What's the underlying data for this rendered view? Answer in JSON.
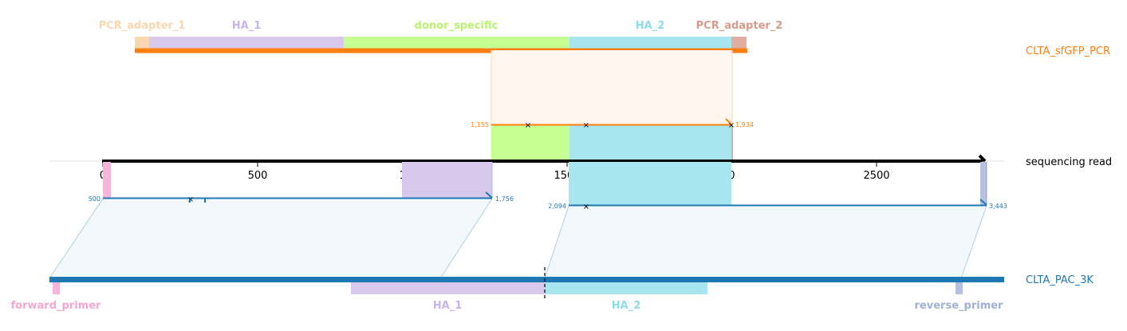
{
  "colors": {
    "pcr_line": "#ff7f0e",
    "pac_line": "#1f77b4",
    "read_axis": "#000000",
    "pcr_adapter_1": "#fbd7b1",
    "ha_1": "#d7c8ec",
    "donor_specific": "#c5ff91",
    "ha_2": "#a8e6ef",
    "pcr_adapter_2": "#e0aea1",
    "forward_primer": "#f7b5dc",
    "reverse_primer": "#b4c1e0",
    "pcr_fill": "#fff6ef",
    "pac_fill": "#f2f8fb"
  },
  "references": {
    "top": {
      "name": "CLTA_sfGFP_PCR",
      "features": [
        {
          "name": "PCR_adapter_1",
          "label_color": "#fbd7b1"
        },
        {
          "name": "HA_1",
          "label_color": "#c6b5e6"
        },
        {
          "name": "donor_specific",
          "label_color": "#b8f56b"
        },
        {
          "name": "HA_2",
          "label_color": "#8ddcea"
        },
        {
          "name": "PCR_adapter_2",
          "label_color": "#d99a8a"
        }
      ]
    },
    "bottom": {
      "name": "CLTA_PAC_3K",
      "features": [
        {
          "name": "forward_primer",
          "label_color": "#f7a6d4"
        },
        {
          "name": "HA_1",
          "label_color": "#c6b5e6"
        },
        {
          "name": "HA_2",
          "label_color": "#8ddcea"
        },
        {
          "name": "reverse_primer",
          "label_color": "#9fb0d6"
        }
      ]
    }
  },
  "read": {
    "name": "sequencing read",
    "ticks": [
      "0",
      "500",
      "1000",
      "1500",
      "2000",
      "2500"
    ]
  },
  "alignments": {
    "pcr": {
      "start_label": "1,155",
      "end_label": "1,934"
    },
    "pac_left": {
      "start_label": "500",
      "end_label": "1,756"
    },
    "pac_right": {
      "start_label": "2,094",
      "end_label": "3,443"
    }
  }
}
